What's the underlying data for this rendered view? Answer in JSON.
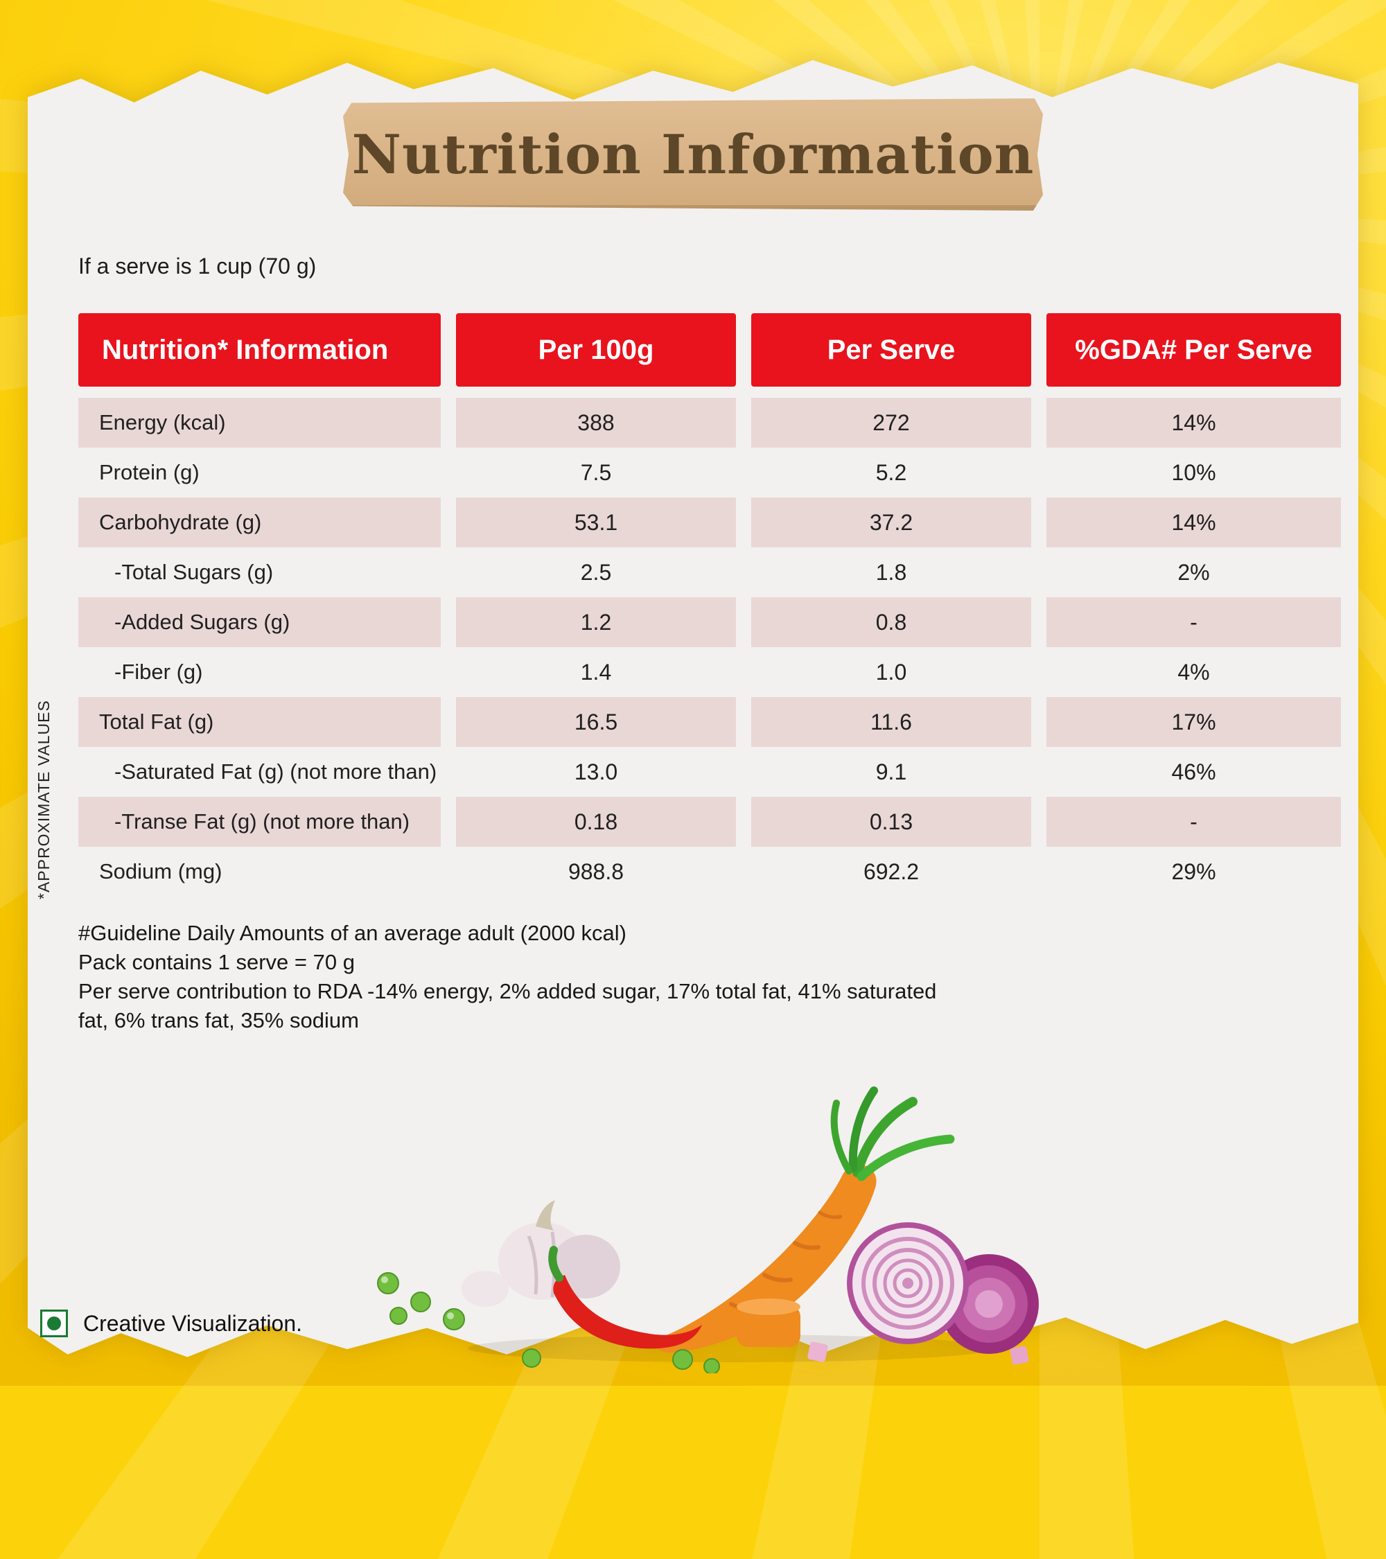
{
  "banner": {
    "title": "Nutrition Information"
  },
  "intro": {
    "serve_note": "If a serve is 1 cup (70 g)"
  },
  "side_note": "*APPROXIMATE VALUES",
  "table": {
    "headers": [
      "Nutrition* Information",
      "Per 100g",
      "Per Serve",
      "%GDA# Per Serve"
    ],
    "rows": [
      {
        "label": "Energy (kcal)",
        "per_100g": "388",
        "per_serve": "272",
        "gda_per_serve": "14%"
      },
      {
        "label": "Protein (g)",
        "per_100g": "7.5",
        "per_serve": "5.2",
        "gda_per_serve": "10%"
      },
      {
        "label": "Carbohydrate (g)",
        "per_100g": "53.1",
        "per_serve": "37.2",
        "gda_per_serve": "14%"
      },
      {
        "label": "-Total Sugars (g)",
        "per_100g": "2.5",
        "per_serve": "1.8",
        "gda_per_serve": "2%"
      },
      {
        "label": "-Added Sugars (g)",
        "per_100g": "1.2",
        "per_serve": "0.8",
        "gda_per_serve": "-"
      },
      {
        "label": "-Fiber (g)",
        "per_100g": "1.4",
        "per_serve": "1.0",
        "gda_per_serve": "4%"
      },
      {
        "label": "Total Fat (g)",
        "per_100g": "16.5",
        "per_serve": "11.6",
        "gda_per_serve": "17%"
      },
      {
        "label": "-Saturated Fat (g) (not more than)",
        "per_100g": "13.0",
        "per_serve": "9.1",
        "gda_per_serve": "46%"
      },
      {
        "label": "-Transe Fat (g) (not more than)",
        "per_100g": "0.18",
        "per_serve": "0.13",
        "gda_per_serve": "-"
      },
      {
        "label": "Sodium (mg)",
        "per_100g": "988.8",
        "per_serve": "692.2",
        "gda_per_serve": "29%"
      }
    ]
  },
  "footnotes": [
    "#Guideline Daily Amounts of an average adult (2000 kcal)",
    "Pack contains 1 serve = 70 g",
    "Per serve contribution to RDA -14% energy, 2% added sugar, 17% total fat, 41% saturated",
    "fat, 6% trans fat, 35% sodium"
  ],
  "footer": {
    "label": "Creative Visualization."
  },
  "colors": {
    "header_red": "#e8131d",
    "row_pink": "#e9d7d6",
    "background_yellow": "#fcd30b",
    "panel": "#f2f1ef",
    "plank": "#d2ab7c",
    "plank_text": "#5d4728",
    "veg_mark_green": "#1b7a33"
  }
}
